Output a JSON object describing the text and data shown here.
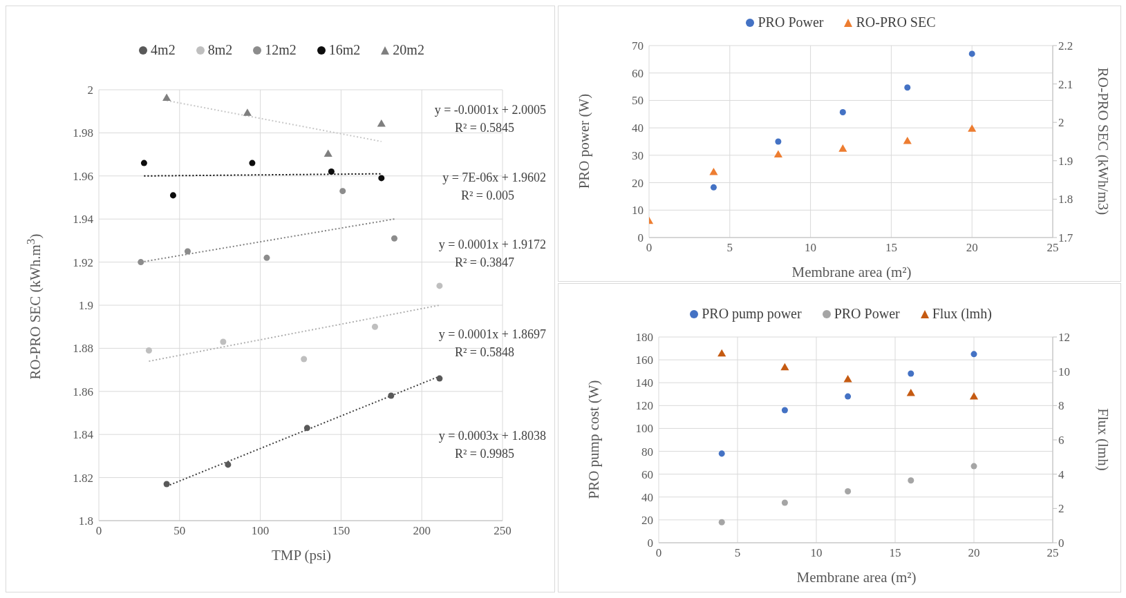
{
  "chart_data": [
    {
      "type": "scatter",
      "xlabel": "TMP (psi)",
      "ylabel": "RO-PRO SEC (kWh.m$^{3}$)",
      "xlim": [
        0,
        250
      ],
      "xticks": [
        0,
        50,
        100,
        150,
        200,
        250
      ],
      "ylim": [
        1.8,
        2
      ],
      "yticks": [
        1.8,
        1.82,
        1.84,
        1.86,
        1.88,
        1.9,
        1.92,
        1.94,
        1.96,
        1.98,
        2
      ],
      "grid": true,
      "legend": "top",
      "series": [
        {
          "name": "4m2",
          "color": "#595959",
          "marker": "circle",
          "x": [
            42,
            80,
            129,
            181,
            211
          ],
          "values": [
            1.817,
            1.826,
            1.843,
            1.858,
            1.866
          ]
        },
        {
          "name": "8m2",
          "color": "#bfbfbf",
          "marker": "circle",
          "x": [
            31,
            77,
            127,
            171,
            211
          ],
          "values": [
            1.879,
            1.883,
            1.875,
            1.89,
            1.909
          ]
        },
        {
          "name": "12m2",
          "color": "#8c8c8c",
          "marker": "circle",
          "x": [
            26,
            55,
            104,
            151,
            183
          ],
          "values": [
            1.92,
            1.925,
            1.922,
            1.953,
            1.931
          ]
        },
        {
          "name": "16m2",
          "color": "#0d0d0d",
          "marker": "circle",
          "x": [
            28,
            46,
            95,
            144,
            175
          ],
          "values": [
            1.966,
            1.951,
            1.966,
            1.962,
            1.959
          ]
        },
        {
          "name": "20m2",
          "color": "#7f7f7f",
          "marker": "triangle",
          "x": [
            42,
            92,
            142,
            175
          ],
          "values": [
            1.996,
            1.989,
            1.97,
            1.984
          ]
        },
        {
          "type": "line",
          "color": "#c8c8c8",
          "line_style": "dotted",
          "x": [
            42,
            175
          ],
          "values": [
            1.995,
            1.976
          ]
        },
        {
          "type": "line",
          "color": "#000000",
          "line_style": "dotted",
          "x": [
            28,
            175
          ],
          "values": [
            1.96,
            1.961
          ]
        },
        {
          "type": "line",
          "color": "#808080",
          "line_style": "dotted",
          "x": [
            26,
            183
          ],
          "values": [
            1.92,
            1.94
          ]
        },
        {
          "type": "line",
          "color": "#b0b0b0",
          "line_style": "dotted",
          "x": [
            31,
            211
          ],
          "values": [
            1.874,
            1.9
          ]
        },
        {
          "type": "line",
          "color": "#404040",
          "line_style": "dotted",
          "x": [
            42,
            211
          ],
          "values": [
            1.816,
            1.867
          ]
        }
      ],
      "annotations": [
        "y = -0.0001x + 2.0005",
        "R² = 0.5845",
        "y = 7E-06x + 1.9602",
        "R² = 0.005",
        "y = 0.0001x + 1.9172",
        "R² = 0.3847",
        "y = 0.0001x + 1.8697",
        "R² = 0.5848",
        "y = 0.0003x + 1.8038",
        "R² = 0.9985"
      ]
    },
    {
      "type": "scatter",
      "xlabel": "Membrane area (m²)",
      "ylabel": "PRO power (W)",
      "y2label": "RO-PRO SEC (kWh/m3)",
      "xlim": [
        0,
        25
      ],
      "xticks": [
        0,
        5,
        10,
        15,
        20,
        25
      ],
      "ylim": [
        0,
        70
      ],
      "yticks": [
        0,
        10,
        20,
        30,
        40,
        50,
        60,
        70
      ],
      "y2lim": [
        1.7,
        2.2
      ],
      "y2ticks": [
        1.7,
        1.8,
        1.9,
        2,
        2.1,
        2.2
      ],
      "grid": true,
      "legend": "top",
      "series": [
        {
          "name": "PRO Power",
          "color": "#4472c4",
          "marker": "circle",
          "x": [
            4,
            8,
            12,
            16,
            20
          ],
          "values": [
            18.3,
            35,
            45.7,
            54.7,
            67
          ]
        },
        {
          "name": "RO-PRO SEC",
          "color": "#ed7d31",
          "marker": "triangle",
          "axis": "y2",
          "x": [
            0,
            4,
            8,
            12,
            16,
            20
          ],
          "values": [
            1.742,
            1.869,
            1.915,
            1.93,
            1.95,
            1.982
          ]
        }
      ]
    },
    {
      "type": "scatter",
      "xlabel": "Membrane area (m²)",
      "ylabel": "PRO pump cost (W)",
      "y2label": "Flux (lmh)",
      "xlim": [
        0,
        25
      ],
      "xticks": [
        0,
        5,
        10,
        15,
        20,
        25
      ],
      "ylim": [
        0,
        180
      ],
      "yticks": [
        0,
        20,
        40,
        60,
        80,
        100,
        120,
        140,
        160,
        180
      ],
      "y2lim": [
        0,
        12
      ],
      "y2ticks": [
        0,
        2,
        4,
        6,
        8,
        10,
        12
      ],
      "grid": true,
      "legend": "top",
      "series": [
        {
          "name": "PRO pump power",
          "color": "#4472c4",
          "marker": "circle",
          "x": [
            4,
            8,
            12,
            16,
            20
          ],
          "values": [
            78,
            116,
            128,
            148,
            165
          ]
        },
        {
          "name": "PRO Power",
          "color": "#a5a5a5",
          "marker": "circle",
          "x": [
            4,
            8,
            12,
            16,
            20
          ],
          "values": [
            18,
            35,
            45,
            54.5,
            67
          ]
        },
        {
          "name": "Flux (lmh)",
          "color": "#c55a11",
          "marker": "triangle",
          "axis": "y2",
          "x": [
            4,
            8,
            12,
            16,
            20
          ],
          "values": [
            11.0,
            10.2,
            9.5,
            8.7,
            8.5
          ]
        }
      ]
    }
  ]
}
